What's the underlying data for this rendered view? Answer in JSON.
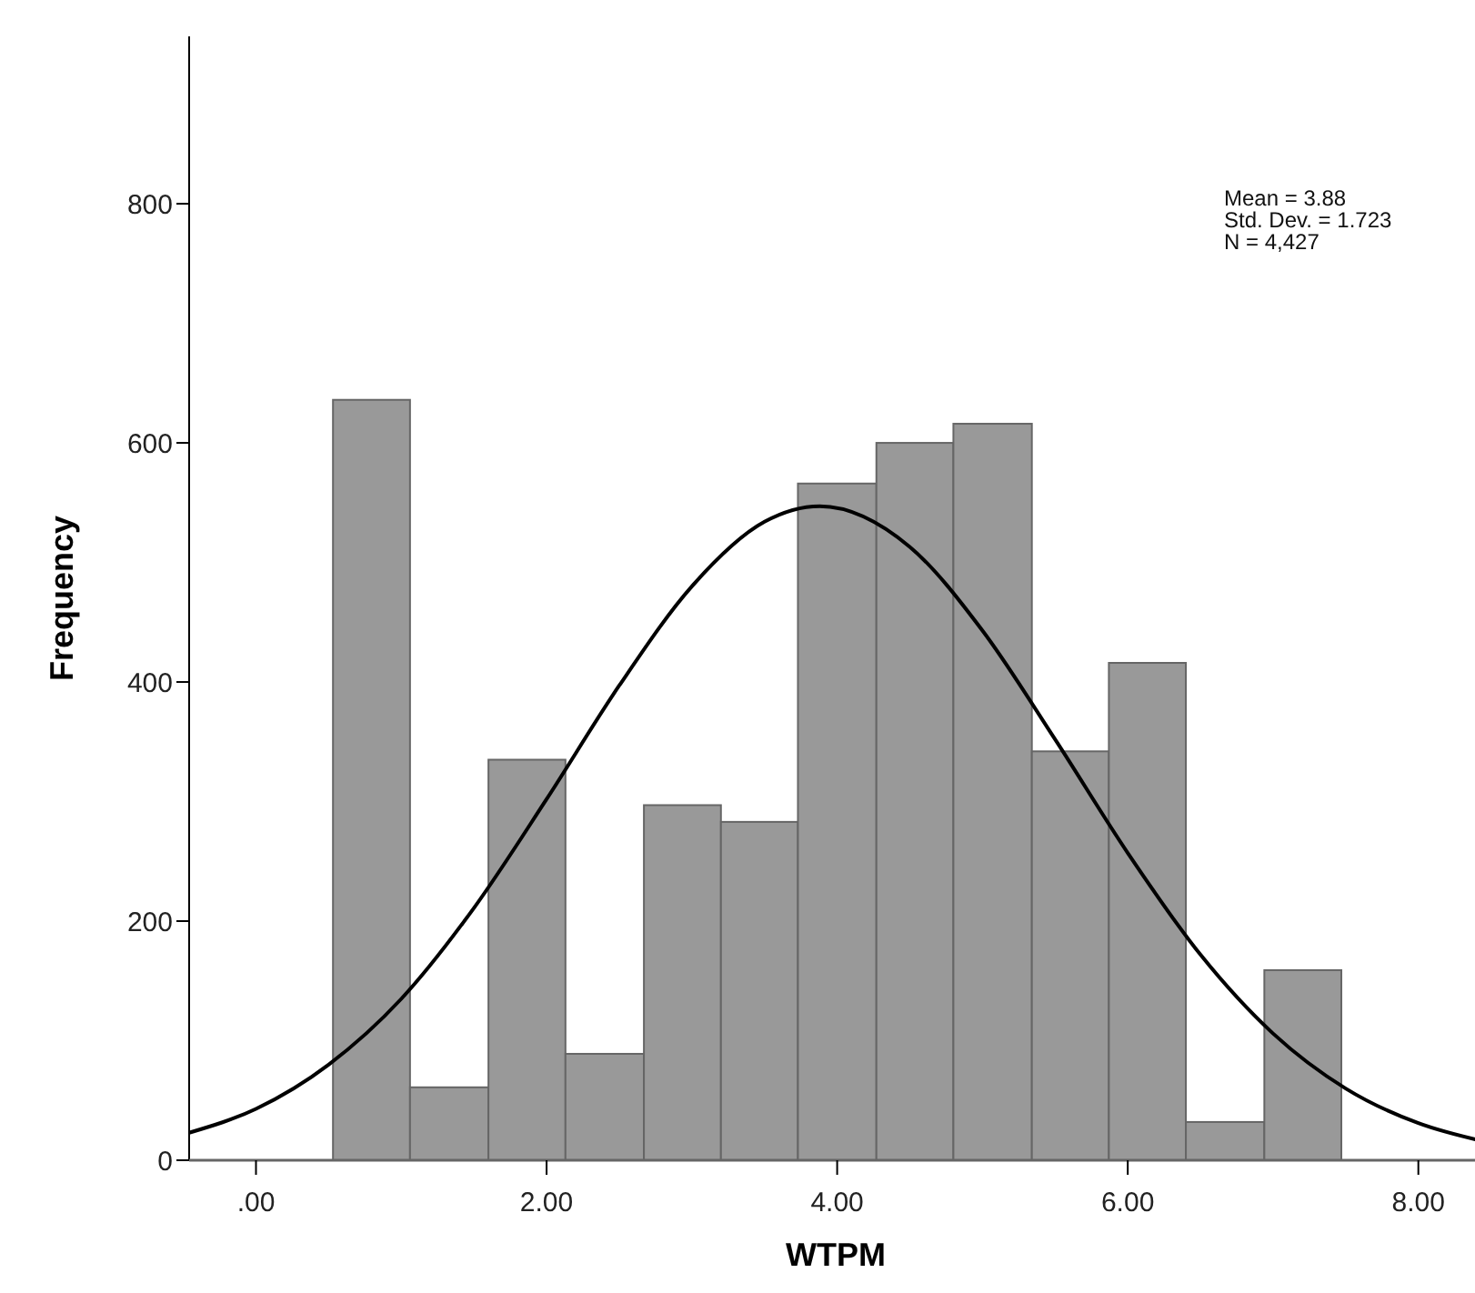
{
  "chart_data": {
    "type": "histogram",
    "xlabel": "WTPM",
    "ylabel": "Frequency",
    "bins": [
      0.53,
      1.06,
      1.6,
      2.13,
      2.67,
      3.2,
      3.73,
      4.27,
      4.8,
      5.34,
      5.87,
      6.4,
      6.94,
      7.47
    ],
    "values": [
      636,
      61,
      335,
      89,
      297,
      283,
      566,
      600,
      616,
      342,
      416,
      32,
      159
    ],
    "color": "#999999",
    "series": [
      {
        "type": "line",
        "color": "#000000",
        "x": [
          -0.46,
          0,
          0.5,
          1,
          1.5,
          2,
          2.5,
          3,
          3.5,
          3.88,
          4.5,
          5,
          5.5,
          6,
          6.5,
          7,
          7.5,
          8,
          8.44
        ],
        "values": [
          23,
          43,
          80,
          135,
          211,
          302,
          397,
          480,
          534,
          547,
          513,
          443,
          352,
          257,
          172,
          106,
          60,
          31,
          16
        ]
      }
    ],
    "xlim": [
      -0.46,
      8.44
    ],
    "xticks": [
      {
        "value": 0,
        "label": ".00"
      },
      {
        "value": 2,
        "label": "2.00"
      },
      {
        "value": 4,
        "label": "4.00"
      },
      {
        "value": 6,
        "label": "6.00"
      },
      {
        "value": 8,
        "label": "8.00"
      }
    ],
    "ylim": [
      0,
      940
    ],
    "yticks": [
      0,
      200,
      400,
      600,
      800
    ],
    "annotations": [
      "Mean = 3.88",
      "Std. Dev. = 1.723",
      "N = 4,427"
    ]
  }
}
